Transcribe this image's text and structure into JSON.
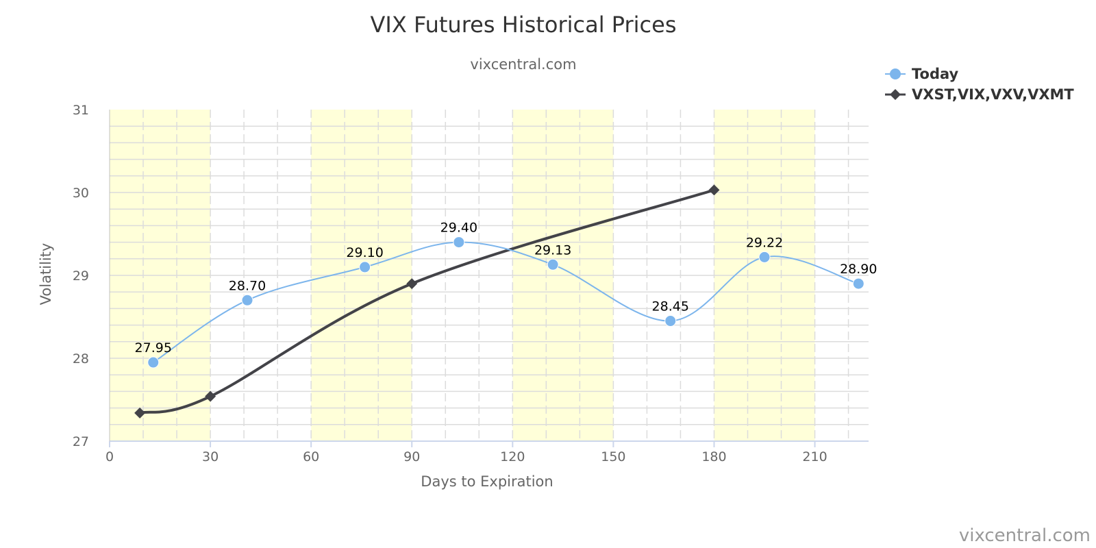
{
  "chart_data": {
    "type": "line",
    "title": "VIX Futures Historical Prices",
    "subtitle": "vixcentral.com",
    "xlabel": "Days to Expiration",
    "ylabel": "Volatility",
    "xlim": [
      0,
      226
    ],
    "ylim": [
      27,
      31
    ],
    "x_ticks": [
      0,
      30,
      60,
      90,
      120,
      150,
      180,
      210
    ],
    "y_ticks": [
      27,
      28,
      29,
      30,
      31
    ],
    "grid": true,
    "shaded_bands": [
      [
        0,
        30
      ],
      [
        60,
        90
      ],
      [
        120,
        150
      ],
      [
        180,
        210
      ]
    ],
    "legend_position": "top-right",
    "credits": "vixcentral.com",
    "series": [
      {
        "name": "Today",
        "color": "#7cb5ec",
        "marker": "circle",
        "x": [
          13,
          41,
          76,
          104,
          132,
          167,
          195,
          223
        ],
        "y": [
          27.95,
          28.7,
          29.1,
          29.4,
          29.13,
          28.45,
          29.22,
          28.9
        ],
        "labels": [
          "27.95",
          "28.70",
          "29.10",
          "29.40",
          "29.13",
          "28.45",
          "29.22",
          "28.90"
        ]
      },
      {
        "name": "VXST,VIX,VXV,VXMT",
        "color": "#434348",
        "marker": "diamond",
        "x": [
          9,
          30,
          90,
          180
        ],
        "y": [
          27.34,
          27.54,
          28.9,
          30.03
        ]
      }
    ]
  }
}
